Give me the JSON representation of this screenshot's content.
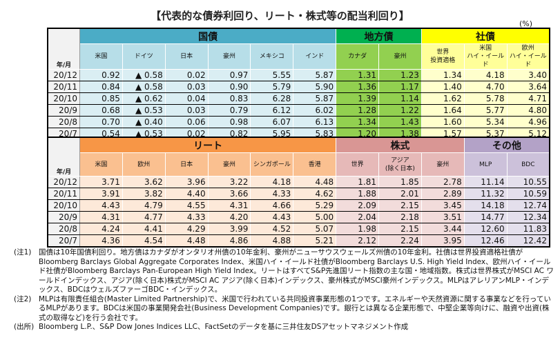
{
  "title": "【代表的な債券利回り、リート・株式等の配当利回り】",
  "unit": "(%)",
  "date_header": "年/月",
  "top": {
    "groups": [
      {
        "label": "国債",
        "span": 6,
        "c": "bl"
      },
      {
        "label": "地方債",
        "span": 2,
        "c": "gr"
      },
      {
        "label": "社債",
        "span": 3,
        "c": "ye"
      }
    ],
    "columns": [
      "米国",
      "ドイツ",
      "日本",
      "豪州",
      "メキシコ",
      "インド",
      "カナダ",
      "豪州",
      "世界\n投資適格",
      "米国\nハイ・イールド",
      "欧州\nハイ・イールド"
    ],
    "rows": [
      {
        "date": "20/12",
        "values": [
          "0.92",
          "▲ 0.58",
          "0.02",
          "0.97",
          "5.55",
          "5.87",
          "1.31",
          "1.23",
          "1.34",
          "4.18",
          "3.40"
        ]
      },
      {
        "date": "20/11",
        "values": [
          "0.84",
          "▲ 0.58",
          "0.03",
          "0.90",
          "5.79",
          "5.90",
          "1.36",
          "1.17",
          "1.40",
          "4.70",
          "3.64"
        ]
      },
      {
        "date": "20/10",
        "values": [
          "0.85",
          "▲ 0.62",
          "0.04",
          "0.83",
          "6.28",
          "5.87",
          "1.39",
          "1.14",
          "1.62",
          "5.78",
          "4.71"
        ]
      },
      {
        "date": "20/9",
        "values": [
          "0.68",
          "▲ 0.53",
          "0.03",
          "0.79",
          "6.12",
          "6.02",
          "1.28",
          "1.22",
          "1.64",
          "5.77",
          "4.80"
        ]
      },
      {
        "date": "20/8",
        "values": [
          "0.70",
          "▲ 0.40",
          "0.06",
          "0.98",
          "6.07",
          "6.13",
          "1.34",
          "1.43",
          "1.60",
          "5.34",
          "4.96"
        ]
      },
      {
        "date": "20/7",
        "values": [
          "0.54",
          "▲ 0.53",
          "0.02",
          "0.82",
          "5.95",
          "5.83",
          "1.20",
          "1.38",
          "1.57",
          "5.37",
          "5.12"
        ]
      }
    ]
  },
  "bottom": {
    "groups": [
      {
        "label": "リート",
        "span": 6,
        "c": "or"
      },
      {
        "label": "株式",
        "span": 3,
        "c": "pk"
      },
      {
        "label": "その他",
        "span": 2,
        "c": "pu"
      }
    ],
    "columns": [
      "米国",
      "欧州",
      "日本",
      "豪州",
      "シンガポール",
      "香港",
      "世界",
      "アジア\n(除く日本)",
      "豪州",
      "MLP",
      "BDC"
    ],
    "rows": [
      {
        "date": "20/12",
        "values": [
          "3.71",
          "3.62",
          "3.96",
          "3.22",
          "4.18",
          "4.48",
          "1.81",
          "1.85",
          "2.78",
          "11.14",
          "10.55"
        ]
      },
      {
        "date": "20/11",
        "values": [
          "3.91",
          "3.82",
          "4.40",
          "3.66",
          "4.33",
          "4.62",
          "1.88",
          "2.01",
          "2.89",
          "11.32",
          "10.59"
        ]
      },
      {
        "date": "20/10",
        "values": [
          "4.43",
          "4.79",
          "4.55",
          "4.31",
          "4.66",
          "5.29",
          "2.09",
          "2.15",
          "3.45",
          "14.18",
          "12.74"
        ]
      },
      {
        "date": "20/9",
        "values": [
          "4.31",
          "4.77",
          "4.33",
          "4.20",
          "4.43",
          "5.00",
          "2.04",
          "2.18",
          "3.51",
          "14.77",
          "12.34"
        ]
      },
      {
        "date": "20/8",
        "values": [
          "4.24",
          "4.41",
          "4.29",
          "3.99",
          "4.52",
          "5.07",
          "1.98",
          "2.15",
          "3.44",
          "12.60",
          "11.83"
        ]
      },
      {
        "date": "20/7",
        "values": [
          "4.36",
          "4.54",
          "4.48",
          "4.86",
          "4.88",
          "5.21",
          "2.12",
          "2.24",
          "3.95",
          "12.46",
          "12.42"
        ]
      }
    ]
  },
  "notes": [
    {
      "label": "(注1)",
      "text": "国債は10年国債利回り。地方債はカナダがオンタリオ州債の10年金利、豪州がニューサウスウェールズ州債の10年金利。社債は世界投資適格社債がBloomberg Barclays Global Aggregate Corporates Index、米国ハイ・イールド社債がBloomberg Barclays U.S. High Yield Index、欧州ハイ・イールド社債がBloomberg Barclays Pan-European High Yield Index。リートはすべてS&P先進国リート指数の主な国・地域指数。株式は世界株式がMSCI AC ワールドインデックス、アジア(除く日本)株式がMSCI AC アジア(除く日本)インデックス、豪州株式がMSCI豪州インデックス。MLPはアレリアンMLP・インデックス、BDCはウェルズファーゴBDC・インデックス。"
    },
    {
      "label": "(注2)",
      "text": "MLPは有限責任組合(Master Limited Partnership)で、米国で行われている共同投資事業形態の1つです。エネルギーや天然資源に関する事業などを行っているMLPがあります。BDCは米国の事業開発会社(Business Development Companies)です。銀行とは異なる企業形態で、中堅企業等向けに、融資や出資(株式の取得など)を行う会社です。"
    },
    {
      "label": "(出所)",
      "text": "Bloomberg L.P.、S&P Dow Jones Indices LLC、FactSetのデータを基に三井住友DSアセットマネジメント作成"
    }
  ]
}
